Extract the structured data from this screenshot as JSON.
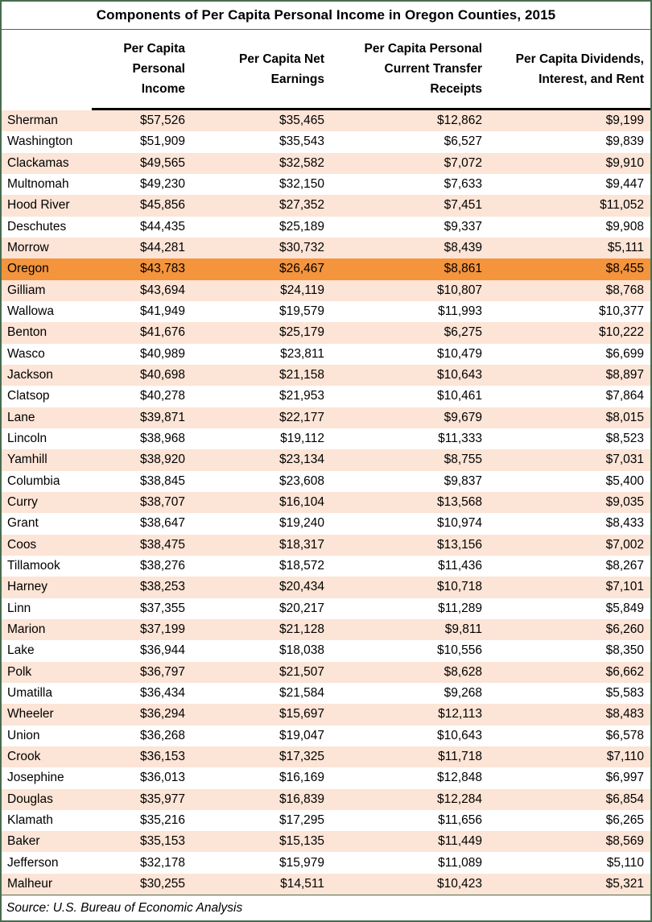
{
  "colors": {
    "stripe_peach": "#FCE4D6",
    "highlight_orange": "#F4943C",
    "frame_green": "#486C50",
    "header_rule_black": "#000000"
  },
  "chart_data": {
    "type": "table",
    "title": "Components of Per Capita Personal Income in Oregon Counties, 2015",
    "unit": "USD",
    "columns": [
      "",
      "Per Capita Personal Income",
      "Per Capita Net Earnings",
      "Per Capita Personal Current Transfer Receipts",
      "Per Capita Dividends, Interest, and Rent"
    ],
    "highlighted_row": "Oregon",
    "source_label": "Source: U.S. Bureau of Economic Analysis",
    "rows": [
      {
        "name": "Sherman",
        "values": [
          57526,
          35465,
          12862,
          9199
        ],
        "highlight": false
      },
      {
        "name": "Washington",
        "values": [
          51909,
          35543,
          6527,
          9839
        ],
        "highlight": false
      },
      {
        "name": "Clackamas",
        "values": [
          49565,
          32582,
          7072,
          9910
        ],
        "highlight": false
      },
      {
        "name": "Multnomah",
        "values": [
          49230,
          32150,
          7633,
          9447
        ],
        "highlight": false
      },
      {
        "name": "Hood River",
        "values": [
          45856,
          27352,
          7451,
          11052
        ],
        "highlight": false
      },
      {
        "name": "Deschutes",
        "values": [
          44435,
          25189,
          9337,
          9908
        ],
        "highlight": false
      },
      {
        "name": "Morrow",
        "values": [
          44281,
          30732,
          8439,
          5111
        ],
        "highlight": false
      },
      {
        "name": "Oregon",
        "values": [
          43783,
          26467,
          8861,
          8455
        ],
        "highlight": true
      },
      {
        "name": "Gilliam",
        "values": [
          43694,
          24119,
          10807,
          8768
        ],
        "highlight": false
      },
      {
        "name": "Wallowa",
        "values": [
          41949,
          19579,
          11993,
          10377
        ],
        "highlight": false
      },
      {
        "name": "Benton",
        "values": [
          41676,
          25179,
          6275,
          10222
        ],
        "highlight": false
      },
      {
        "name": "Wasco",
        "values": [
          40989,
          23811,
          10479,
          6699
        ],
        "highlight": false
      },
      {
        "name": "Jackson",
        "values": [
          40698,
          21158,
          10643,
          8897
        ],
        "highlight": false
      },
      {
        "name": "Clatsop",
        "values": [
          40278,
          21953,
          10461,
          7864
        ],
        "highlight": false
      },
      {
        "name": "Lane",
        "values": [
          39871,
          22177,
          9679,
          8015
        ],
        "highlight": false
      },
      {
        "name": "Lincoln",
        "values": [
          38968,
          19112,
          11333,
          8523
        ],
        "highlight": false
      },
      {
        "name": "Yamhill",
        "values": [
          38920,
          23134,
          8755,
          7031
        ],
        "highlight": false
      },
      {
        "name": "Columbia",
        "values": [
          38845,
          23608,
          9837,
          5400
        ],
        "highlight": false
      },
      {
        "name": "Curry",
        "values": [
          38707,
          16104,
          13568,
          9035
        ],
        "highlight": false
      },
      {
        "name": "Grant",
        "values": [
          38647,
          19240,
          10974,
          8433
        ],
        "highlight": false
      },
      {
        "name": "Coos",
        "values": [
          38475,
          18317,
          13156,
          7002
        ],
        "highlight": false
      },
      {
        "name": "Tillamook",
        "values": [
          38276,
          18572,
          11436,
          8267
        ],
        "highlight": false
      },
      {
        "name": "Harney",
        "values": [
          38253,
          20434,
          10718,
          7101
        ],
        "highlight": false
      },
      {
        "name": "Linn",
        "values": [
          37355,
          20217,
          11289,
          5849
        ],
        "highlight": false
      },
      {
        "name": "Marion",
        "values": [
          37199,
          21128,
          9811,
          6260
        ],
        "highlight": false
      },
      {
        "name": "Lake",
        "values": [
          36944,
          18038,
          10556,
          8350
        ],
        "highlight": false
      },
      {
        "name": "Polk",
        "values": [
          36797,
          21507,
          8628,
          6662
        ],
        "highlight": false
      },
      {
        "name": "Umatilla",
        "values": [
          36434,
          21584,
          9268,
          5583
        ],
        "highlight": false
      },
      {
        "name": "Wheeler",
        "values": [
          36294,
          15697,
          12113,
          8483
        ],
        "highlight": false
      },
      {
        "name": "Union",
        "values": [
          36268,
          19047,
          10643,
          6578
        ],
        "highlight": false
      },
      {
        "name": "Crook",
        "values": [
          36153,
          17325,
          11718,
          7110
        ],
        "highlight": false
      },
      {
        "name": "Josephine",
        "values": [
          36013,
          16169,
          12848,
          6997
        ],
        "highlight": false
      },
      {
        "name": "Douglas",
        "values": [
          35977,
          16839,
          12284,
          6854
        ],
        "highlight": false
      },
      {
        "name": "Klamath",
        "values": [
          35216,
          17295,
          11656,
          6265
        ],
        "highlight": false
      },
      {
        "name": "Baker",
        "values": [
          35153,
          15135,
          11449,
          8569
        ],
        "highlight": false
      },
      {
        "name": "Jefferson",
        "values": [
          32178,
          15979,
          11089,
          5110
        ],
        "highlight": false
      },
      {
        "name": "Malheur",
        "values": [
          30255,
          14511,
          10423,
          5321
        ],
        "highlight": false
      }
    ]
  }
}
